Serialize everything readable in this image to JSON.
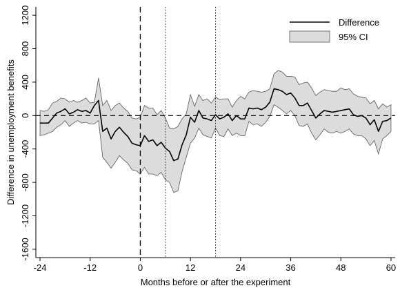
{
  "chart_data": {
    "type": "line",
    "xlabel": "Months before or after the experiment",
    "ylabel": "Difference in unemployment benefits",
    "xlim": [
      -25,
      61
    ],
    "ylim": [
      -1700,
      1300
    ],
    "x_ticks": [
      -24,
      -12,
      0,
      12,
      24,
      36,
      48,
      60
    ],
    "y_ticks": [
      -1600,
      -1200,
      -800,
      -400,
      0,
      400,
      800,
      1200
    ],
    "x_tick_labels": [
      "-24",
      "-12",
      "0",
      "12",
      "24",
      "36",
      "48",
      "60"
    ],
    "y_tick_labels": [
      "-1600",
      "-1200",
      "-800",
      "-400",
      "0",
      "400",
      "800",
      "1200"
    ],
    "reference_lines": {
      "horizontal_zero": 0,
      "vertical_dashed": 0,
      "vertical_dotted": [
        6,
        18
      ]
    },
    "legend": {
      "position": "top-right",
      "entries": [
        "Difference",
        "95% CI"
      ]
    },
    "colors": {
      "line": "#000000",
      "ci_fill": "#dcdcdc",
      "ci_edge": "#555555"
    },
    "series": [
      {
        "name": "Difference",
        "x": [
          -24,
          -23,
          -22,
          -21,
          -20,
          -19,
          -18,
          -17,
          -16,
          -15,
          -14,
          -13,
          -12,
          -11,
          -10,
          -9,
          -8,
          -7,
          -6,
          -5,
          -4,
          -3,
          -2,
          -1,
          0,
          1,
          2,
          3,
          4,
          5,
          6,
          7,
          8,
          9,
          10,
          11,
          12,
          13,
          14,
          15,
          16,
          17,
          18,
          19,
          20,
          21,
          22,
          23,
          24,
          25,
          26,
          27,
          28,
          29,
          30,
          31,
          32,
          33,
          34,
          35,
          36,
          37,
          38,
          39,
          40,
          41,
          42,
          43,
          44,
          45,
          46,
          47,
          48,
          49,
          50,
          51,
          52,
          53,
          54,
          55,
          56,
          57,
          58,
          59,
          60
        ],
        "y": [
          -90,
          -90,
          -90,
          -30,
          30,
          50,
          80,
          20,
          40,
          70,
          50,
          60,
          30,
          120,
          180,
          -190,
          -150,
          -280,
          -190,
          -140,
          -200,
          -250,
          -330,
          -350,
          -360,
          -240,
          -310,
          -290,
          -360,
          -320,
          -390,
          -430,
          -540,
          -520,
          -350,
          -230,
          -20,
          -80,
          60,
          -30,
          -40,
          -60,
          10,
          -40,
          -20,
          20,
          -60,
          0,
          -40,
          -40,
          90,
          80,
          90,
          70,
          100,
          160,
          320,
          310,
          290,
          250,
          270,
          210,
          120,
          120,
          150,
          60,
          -30,
          20,
          60,
          50,
          40,
          50,
          60,
          70,
          80,
          10,
          -10,
          0,
          -30,
          -110,
          -50,
          -190,
          -70,
          -60,
          -30
        ]
      },
      {
        "name": "95% CI",
        "x": [
          -24,
          -23,
          -22,
          -21,
          -20,
          -19,
          -18,
          -17,
          -16,
          -15,
          -14,
          -13,
          -12,
          -11,
          -10,
          -9,
          -8,
          -7,
          -6,
          -5,
          -4,
          -3,
          -2,
          -1,
          0,
          1,
          2,
          3,
          4,
          5,
          6,
          7,
          8,
          9,
          10,
          11,
          12,
          13,
          14,
          15,
          16,
          17,
          18,
          19,
          20,
          21,
          22,
          23,
          24,
          25,
          26,
          27,
          28,
          29,
          30,
          31,
          32,
          33,
          34,
          35,
          36,
          37,
          38,
          39,
          40,
          41,
          42,
          43,
          44,
          45,
          46,
          47,
          48,
          49,
          50,
          51,
          52,
          53,
          54,
          55,
          56,
          57,
          58,
          59,
          60
        ],
        "upper": [
          60,
          50,
          70,
          150,
          170,
          210,
          200,
          160,
          180,
          160,
          180,
          210,
          150,
          160,
          450,
          120,
          180,
          60,
          120,
          150,
          90,
          50,
          -30,
          -40,
          -20,
          120,
          90,
          90,
          10,
          60,
          -30,
          -150,
          -160,
          -130,
          -40,
          20,
          250,
          110,
          250,
          180,
          200,
          150,
          220,
          190,
          200,
          200,
          100,
          180,
          230,
          200,
          280,
          300,
          290,
          280,
          290,
          320,
          500,
          540,
          520,
          470,
          470,
          460,
          370,
          390,
          400,
          330,
          240,
          280,
          310,
          300,
          290,
          290,
          330,
          310,
          320,
          260,
          230,
          220,
          210,
          140,
          180,
          80,
          140,
          100,
          130
        ],
        "lower": [
          -240,
          -230,
          -210,
          -190,
          -140,
          -110,
          -60,
          -130,
          -90,
          -60,
          -90,
          -80,
          -100,
          -100,
          -60,
          -500,
          -560,
          -630,
          -560,
          -480,
          -530,
          -570,
          -650,
          -660,
          -700,
          -620,
          -700,
          -700,
          -720,
          -680,
          -770,
          -800,
          -920,
          -900,
          -670,
          -500,
          -330,
          -270,
          -150,
          -230,
          -250,
          -270,
          -150,
          -240,
          -250,
          -160,
          -240,
          -210,
          -240,
          -240,
          -70,
          -110,
          -100,
          -130,
          -80,
          -10,
          130,
          100,
          60,
          20,
          60,
          0,
          -120,
          -130,
          -100,
          -210,
          -290,
          -230,
          -160,
          -200,
          -210,
          -190,
          -210,
          -190,
          -160,
          -220,
          -240,
          -240,
          -280,
          -360,
          -300,
          -460,
          -280,
          -240,
          -190
        ]
      }
    ]
  }
}
